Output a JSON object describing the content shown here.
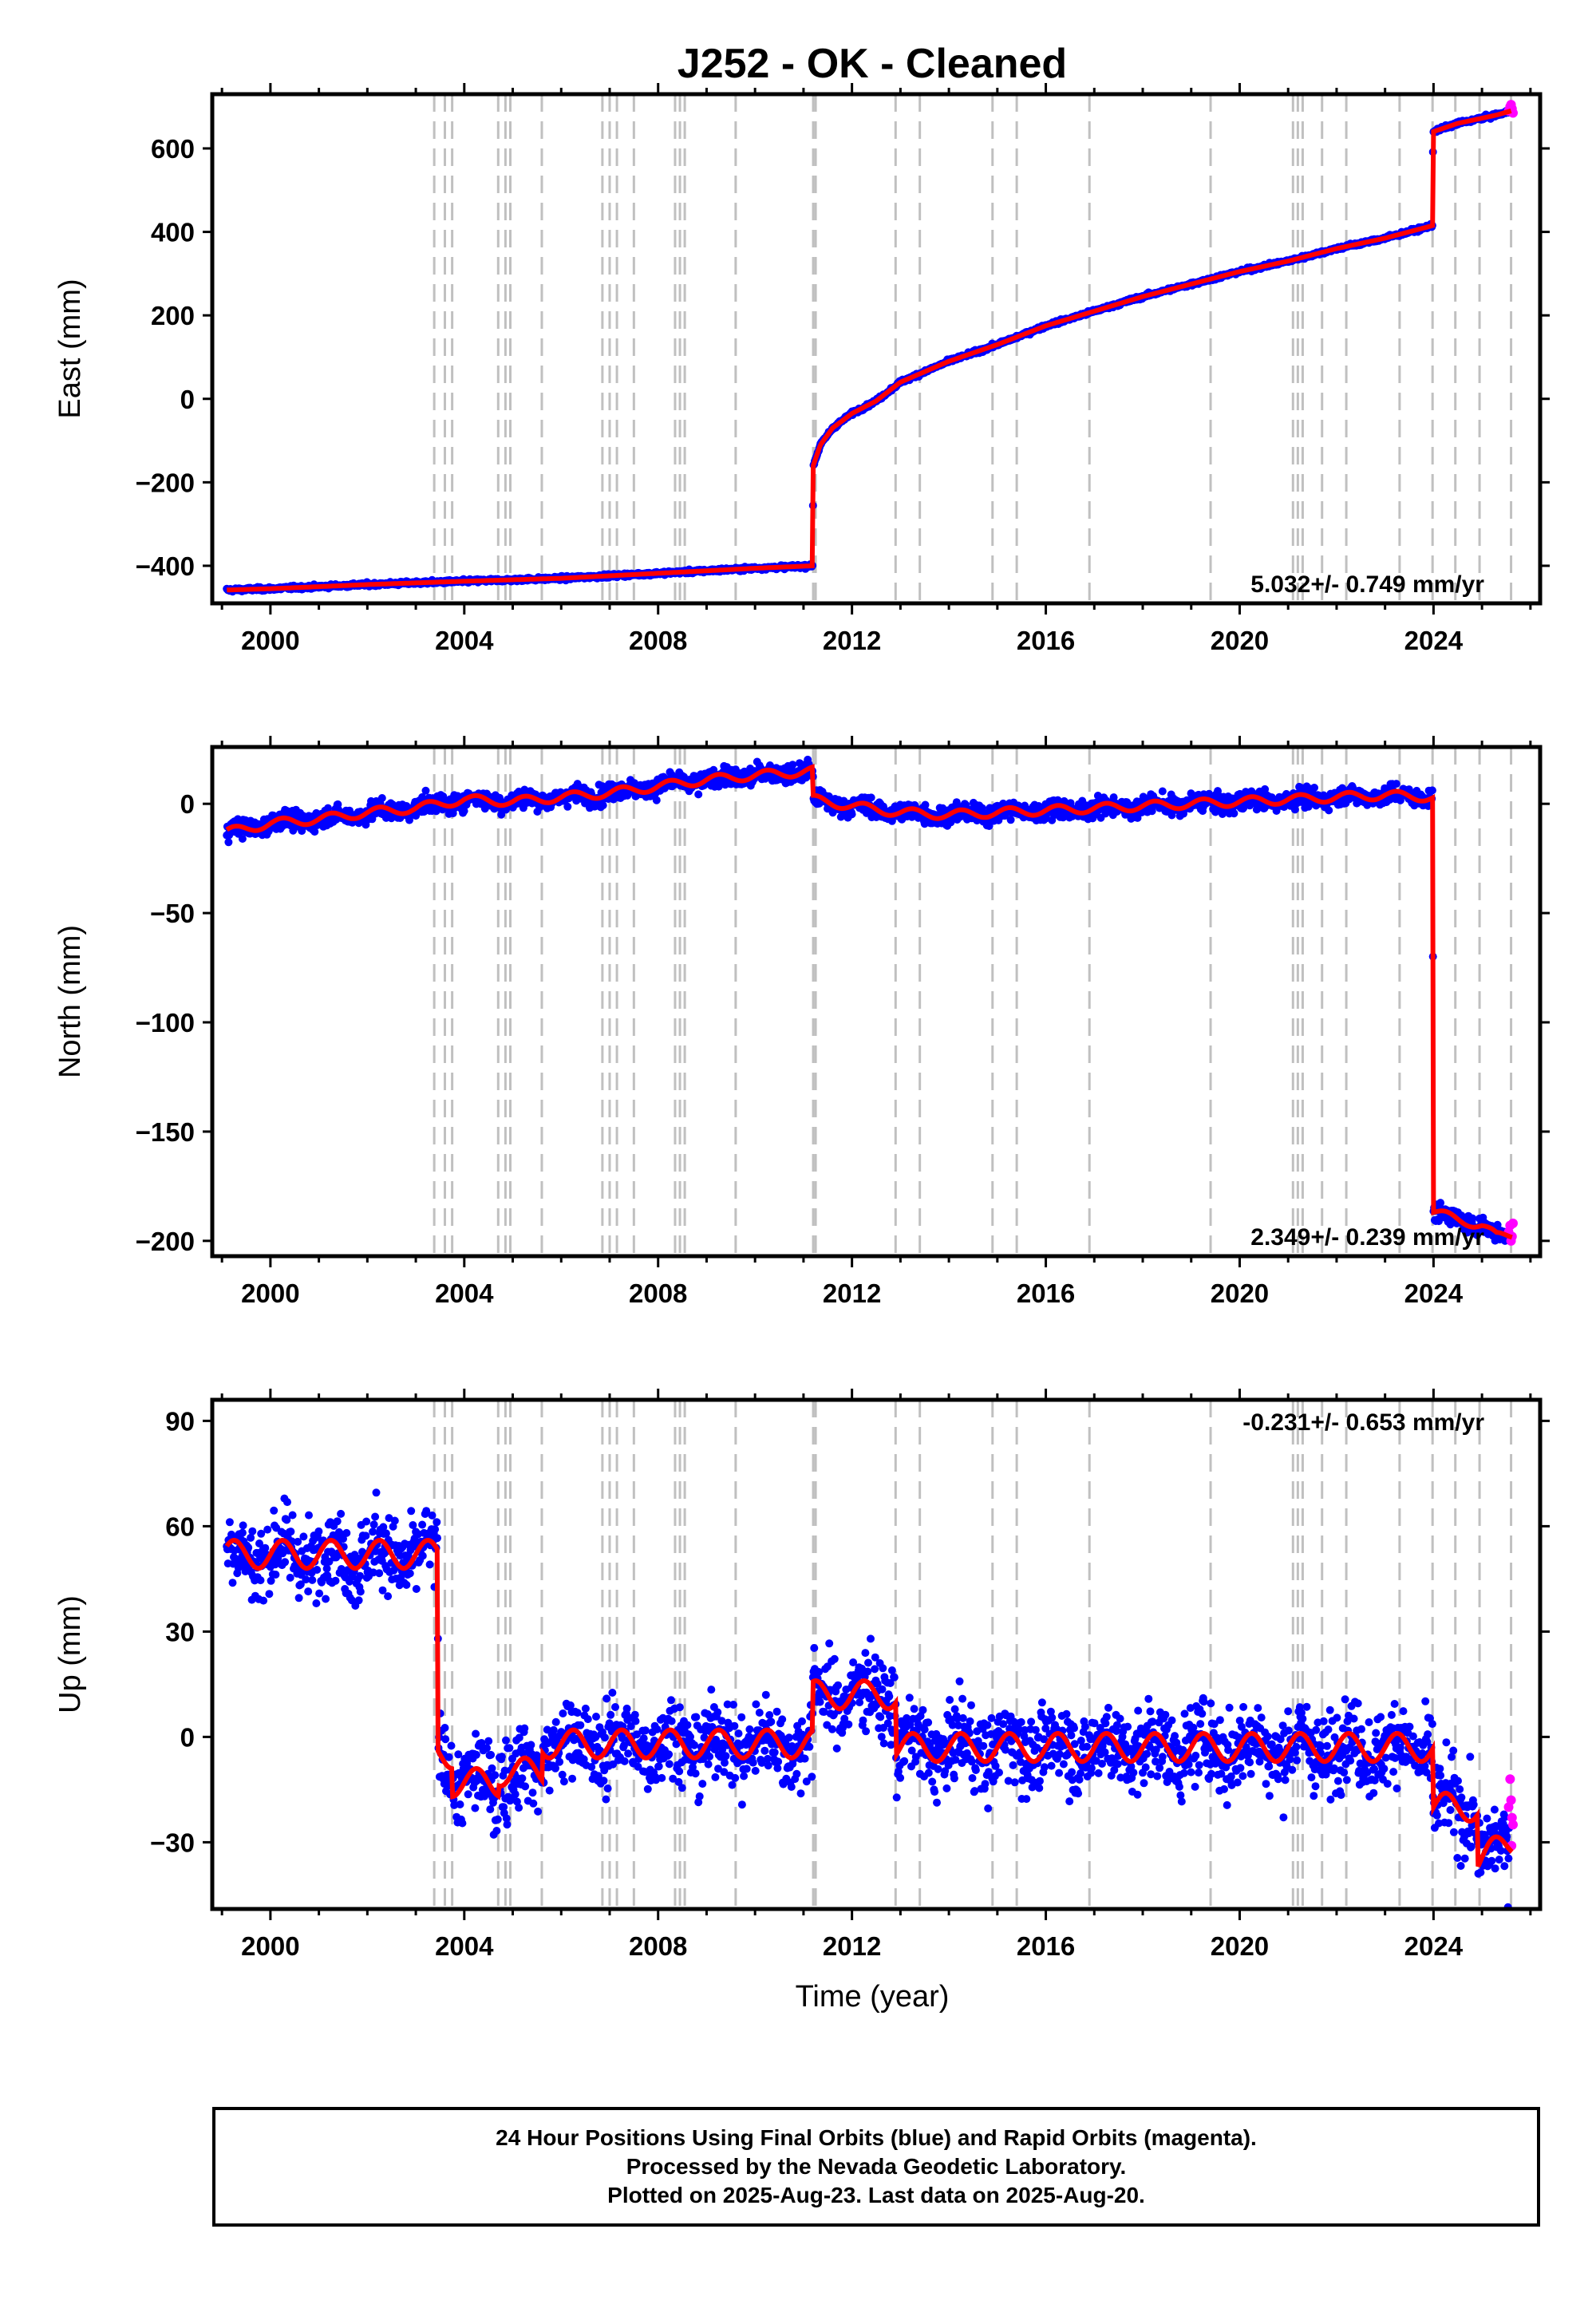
{
  "title": "J252  - OK - Cleaned",
  "xlabel": "Time (year)",
  "footer": {
    "line1": "24 Hour Positions Using Final Orbits (blue) and Rapid Orbits (magenta).",
    "line2": "Processed by the Nevada Geodetic Laboratory.",
    "line3": "Plotted on 2025-Aug-23. Last data on 2025-Aug-20."
  },
  "colors": {
    "final": "#0000ff",
    "rapid": "#ff00ff",
    "model": "#ff0000",
    "events": "#c0c0c0"
  },
  "chart_data": [
    {
      "type": "scatter",
      "name": "east",
      "ylabel": "East (mm)",
      "ylim": [
        -490,
        730
      ],
      "xlim": [
        1998.8,
        2026.2
      ],
      "yticks": [
        -400,
        -200,
        0,
        200,
        400,
        600
      ],
      "xticks": [
        2000,
        2004,
        2008,
        2012,
        2016,
        2020,
        2024
      ],
      "rate_label": "5.032+/- 0.749 mm/yr",
      "rate_position": "bottom-right",
      "noise": 3,
      "model": [
        [
          1999.1,
          -458
        ],
        [
          2000,
          -455
        ],
        [
          2002,
          -445
        ],
        [
          2004,
          -437
        ],
        [
          2006,
          -430
        ],
        [
          2008,
          -418
        ],
        [
          2010,
          -406
        ],
        [
          2011.19,
          -400
        ],
        [
          2011.2,
          -160
        ],
        [
          2011.35,
          -110
        ],
        [
          2011.6,
          -70
        ],
        [
          2012,
          -35
        ],
        [
          2012.5,
          -5
        ],
        [
          2013,
          40
        ],
        [
          2013.6,
          70
        ],
        [
          2014,
          90
        ],
        [
          2015,
          130
        ],
        [
          2016,
          175
        ],
        [
          2017,
          210
        ],
        [
          2018,
          245
        ],
        [
          2019,
          275
        ],
        [
          2020,
          305
        ],
        [
          2021,
          330
        ],
        [
          2022,
          360
        ],
        [
          2023,
          385
        ],
        [
          2023.98,
          415
        ],
        [
          2023.99,
          640
        ],
        [
          2024.5,
          660
        ],
        [
          2025.3,
          680
        ],
        [
          2025.6,
          690
        ]
      ],
      "rapid": [
        [
          2025.55,
          690
        ],
        [
          2025.58,
          700
        ],
        [
          2025.6,
          705
        ],
        [
          2025.62,
          695
        ],
        [
          2025.64,
          685
        ]
      ]
    },
    {
      "type": "scatter",
      "name": "north",
      "ylabel": "North (mm)",
      "ylim": [
        -207,
        26
      ],
      "xlim": [
        1998.8,
        2026.2
      ],
      "yticks": [
        -200,
        -150,
        -100,
        -50,
        0
      ],
      "xticks": [
        2000,
        2004,
        2008,
        2012,
        2016,
        2020,
        2024
      ],
      "rate_label": "2.349+/- 0.239 mm/yr",
      "rate_position": "bottom-right",
      "noise": 3,
      "model": [
        [
          1999.1,
          -13
        ],
        [
          2000,
          -9
        ],
        [
          2001,
          -7
        ],
        [
          2002,
          -4
        ],
        [
          2003,
          -2
        ],
        [
          2004,
          2
        ],
        [
          2005,
          1
        ],
        [
          2006,
          3
        ],
        [
          2007,
          5
        ],
        [
          2008,
          8
        ],
        [
          2009,
          11
        ],
        [
          2010,
          13
        ],
        [
          2011.19,
          15
        ],
        [
          2011.2,
          2
        ],
        [
          2012,
          -1
        ],
        [
          2013,
          -4
        ],
        [
          2014,
          -5
        ],
        [
          2015,
          -4
        ],
        [
          2016,
          -3
        ],
        [
          2017,
          -2
        ],
        [
          2018,
          -1
        ],
        [
          2019,
          0
        ],
        [
          2020,
          1
        ],
        [
          2021,
          2
        ],
        [
          2022,
          3
        ],
        [
          2023,
          4
        ],
        [
          2023.98,
          3
        ],
        [
          2023.99,
          -92
        ],
        [
          2024.0,
          -187
        ],
        [
          2024.5,
          -190
        ],
        [
          2025.0,
          -193
        ],
        [
          2025.3,
          -198
        ],
        [
          2025.62,
          -197
        ]
      ],
      "rapid": [
        [
          2025.55,
          -196
        ],
        [
          2025.58,
          -193
        ],
        [
          2025.6,
          -200
        ],
        [
          2025.62,
          -198
        ],
        [
          2025.64,
          -192
        ]
      ]
    },
    {
      "type": "scatter",
      "name": "up",
      "ylabel": "Up (mm)",
      "ylim": [
        -49,
        96
      ],
      "xlim": [
        1998.8,
        2026.2
      ],
      "yticks": [
        -30,
        0,
        30,
        60,
        90
      ],
      "xticks": [
        2000,
        2004,
        2008,
        2012,
        2016,
        2020,
        2024
      ],
      "rate_label": "-0.231+/- 0.653 mm/yr",
      "rate_position": "top-right",
      "noise": 8,
      "model": [
        [
          1999.1,
          52
        ],
        [
          2003.45,
          52
        ],
        [
          2003.46,
          -5
        ],
        [
          2003.75,
          -5
        ],
        [
          2003.76,
          -13
        ],
        [
          2004.7,
          -13
        ],
        [
          2004.71,
          -10
        ],
        [
          2005.6,
          -10
        ],
        [
          2005.61,
          -2
        ],
        [
          2011.19,
          -2
        ],
        [
          2011.2,
          12
        ],
        [
          2012.9,
          12
        ],
        [
          2012.91,
          -3
        ],
        [
          2023.98,
          -3
        ],
        [
          2023.99,
          -20
        ],
        [
          2024.9,
          -20
        ],
        [
          2024.91,
          -35
        ],
        [
          2025.62,
          -30
        ]
      ],
      "rapid": [
        [
          2025.55,
          -20
        ],
        [
          2025.58,
          -12
        ],
        [
          2025.6,
          -18
        ],
        [
          2025.62,
          -23
        ],
        [
          2025.64,
          -25
        ],
        [
          2025.61,
          -31
        ]
      ]
    }
  ],
  "events": [
    2003.38,
    2003.6,
    2003.75,
    2004.7,
    2004.85,
    2004.95,
    2005.6,
    2006.85,
    2007.0,
    2007.15,
    2007.5,
    2008.35,
    2008.45,
    2008.55,
    2009.6,
    2011.2,
    2011.25,
    2012.9,
    2013.4,
    2014.9,
    2015.4,
    2016.9,
    2019.4,
    2021.1,
    2021.2,
    2021.3,
    2021.7,
    2022.2,
    2023.3,
    2023.98,
    2024.45,
    2024.95,
    2025.6
  ]
}
